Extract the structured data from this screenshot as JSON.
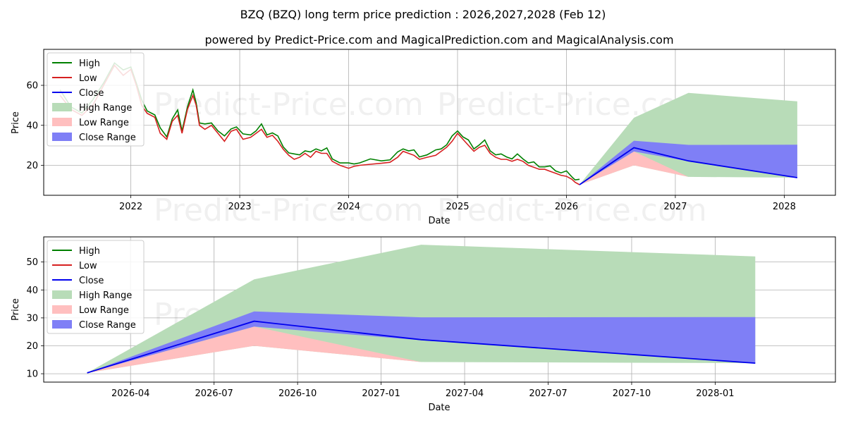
{
  "title": "BZQ (BZQ) long term price prediction : 2026,2027,2028 (Feb 12)",
  "subtitle": "powered by Predict-Price.com and MagicalPrediction.com and MagicalAnalysis.com",
  "watermark": "Predict-Price.com",
  "colors": {
    "high": "#008000",
    "low": "#d62020",
    "close": "#0000ee",
    "high_range": "#b8dcb8",
    "low_range": "#ffbfbf",
    "close_range": "#7f7ff6",
    "grid": "#b0b0b0"
  },
  "legend": [
    "High",
    "Low",
    "Close",
    "High Range",
    "Low Range",
    "Close Range"
  ],
  "chart_data": [
    {
      "type": "line",
      "panel": "full",
      "xlabel": "Date",
      "ylabel": "Price",
      "xlim": [
        2021.2,
        2028.47
      ],
      "ylim": [
        5,
        78
      ],
      "xticks": [
        2022,
        2023,
        2024,
        2025,
        2026,
        2027,
        2028
      ],
      "xtick_labels": [
        "2022",
        "2023",
        "2024",
        "2025",
        "2026",
        "2027",
        "2028"
      ],
      "yticks": [
        20,
        40,
        60
      ],
      "history_points": [
        [
          2021.35,
          55
        ],
        [
          2021.45,
          48
        ],
        [
          2021.55,
          45
        ],
        [
          2021.65,
          50
        ],
        [
          2021.75,
          60
        ],
        [
          2021.85,
          70
        ],
        [
          2021.93,
          65
        ],
        [
          2022.0,
          68
        ],
        [
          2022.05,
          60
        ],
        [
          2022.1,
          50
        ],
        [
          2022.15,
          46
        ],
        [
          2022.22,
          44
        ],
        [
          2022.27,
          36
        ],
        [
          2022.33,
          33
        ],
        [
          2022.38,
          42
        ],
        [
          2022.43,
          45
        ],
        [
          2022.47,
          36
        ],
        [
          2022.52,
          48
        ],
        [
          2022.57,
          55
        ],
        [
          2022.6,
          50
        ],
        [
          2022.63,
          40
        ],
        [
          2022.68,
          38
        ],
        [
          2022.74,
          40
        ],
        [
          2022.8,
          36
        ],
        [
          2022.86,
          32
        ],
        [
          2022.92,
          37
        ],
        [
          2022.97,
          38
        ],
        [
          2023.03,
          33
        ],
        [
          2023.1,
          34
        ],
        [
          2023.15,
          36
        ],
        [
          2023.2,
          38
        ],
        [
          2023.25,
          34
        ],
        [
          2023.3,
          35
        ],
        [
          2023.35,
          32
        ],
        [
          2023.4,
          28
        ],
        [
          2023.45,
          25
        ],
        [
          2023.5,
          23
        ],
        [
          2023.55,
          24
        ],
        [
          2023.6,
          26
        ],
        [
          2023.65,
          24
        ],
        [
          2023.7,
          27
        ],
        [
          2023.75,
          26
        ],
        [
          2023.8,
          26
        ],
        [
          2023.85,
          22
        ],
        [
          2023.92,
          20
        ],
        [
          2024.0,
          18.5
        ],
        [
          2024.05,
          19.5
        ],
        [
          2024.1,
          20
        ],
        [
          2024.2,
          20.5
        ],
        [
          2024.3,
          21
        ],
        [
          2024.38,
          21.5
        ],
        [
          2024.45,
          24
        ],
        [
          2024.5,
          27
        ],
        [
          2024.55,
          26
        ],
        [
          2024.6,
          25
        ],
        [
          2024.65,
          23
        ],
        [
          2024.72,
          24
        ],
        [
          2024.8,
          25
        ],
        [
          2024.85,
          27
        ],
        [
          2024.9,
          29
        ],
        [
          2024.95,
          32
        ],
        [
          2025.0,
          36
        ],
        [
          2025.05,
          33
        ],
        [
          2025.1,
          30
        ],
        [
          2025.15,
          27
        ],
        [
          2025.2,
          29
        ],
        [
          2025.25,
          30
        ],
        [
          2025.3,
          26
        ],
        [
          2025.35,
          24
        ],
        [
          2025.4,
          23
        ],
        [
          2025.45,
          23
        ],
        [
          2025.5,
          22
        ],
        [
          2025.55,
          23
        ],
        [
          2025.6,
          22
        ],
        [
          2025.65,
          20
        ],
        [
          2025.7,
          19
        ],
        [
          2025.75,
          18
        ],
        [
          2025.8,
          18
        ],
        [
          2025.85,
          17
        ],
        [
          2025.9,
          16
        ],
        [
          2025.95,
          15
        ],
        [
          2026.0,
          14.5
        ],
        [
          2026.05,
          13
        ],
        [
          2026.08,
          11.5
        ],
        [
          2026.12,
          10.3
        ]
      ],
      "forecast_dates": [
        "2026-02-12",
        "2026-08-15",
        "2027-02-15",
        "2028-02-15"
      ],
      "forecast_x": [
        2026.12,
        2026.62,
        2027.12,
        2028.12
      ],
      "close": [
        10.3,
        28.8,
        22.2,
        13.8
      ],
      "high_range": {
        "upper": [
          10.3,
          43.8,
          56.2,
          52.0
        ],
        "lower": [
          10.3,
          20.0,
          14.2,
          13.8
        ]
      },
      "low_range": {
        "upper": [
          10.3,
          26.9,
          14.2,
          13.8
        ],
        "lower": [
          10.3,
          20.0,
          14.2,
          13.8
        ]
      },
      "close_range": {
        "upper": [
          10.3,
          32.3,
          30.2,
          30.3
        ],
        "lower": [
          10.3,
          26.9,
          22.0,
          13.8
        ]
      }
    },
    {
      "type": "line",
      "panel": "forecast",
      "xlabel": "Date",
      "ylabel": "Price",
      "xlim": [
        2025.99,
        2028.36
      ],
      "ylim": [
        7,
        59
      ],
      "xticks": [
        2026.25,
        2026.5,
        2026.75,
        2027.0,
        2027.25,
        2027.5,
        2027.75,
        2028.0
      ],
      "xtick_labels": [
        "2026-04",
        "2026-07",
        "2026-10",
        "2027-01",
        "2027-04",
        "2027-07",
        "2027-10",
        "2028-01"
      ],
      "yticks": [
        10,
        20,
        30,
        40,
        50
      ],
      "forecast_x": [
        2026.12,
        2026.62,
        2027.12,
        2028.12
      ],
      "close": [
        10.3,
        28.8,
        22.2,
        13.8
      ],
      "high_range": {
        "upper": [
          10.3,
          43.8,
          56.2,
          52.0
        ],
        "lower": [
          10.3,
          20.0,
          14.2,
          13.8
        ]
      },
      "low_range": {
        "upper": [
          10.3,
          26.9,
          14.2,
          13.8
        ],
        "lower": [
          10.3,
          20.0,
          14.2,
          13.8
        ]
      },
      "close_range": {
        "upper": [
          10.3,
          32.3,
          30.2,
          30.3
        ],
        "lower": [
          10.3,
          26.9,
          22.0,
          13.8
        ]
      }
    }
  ]
}
